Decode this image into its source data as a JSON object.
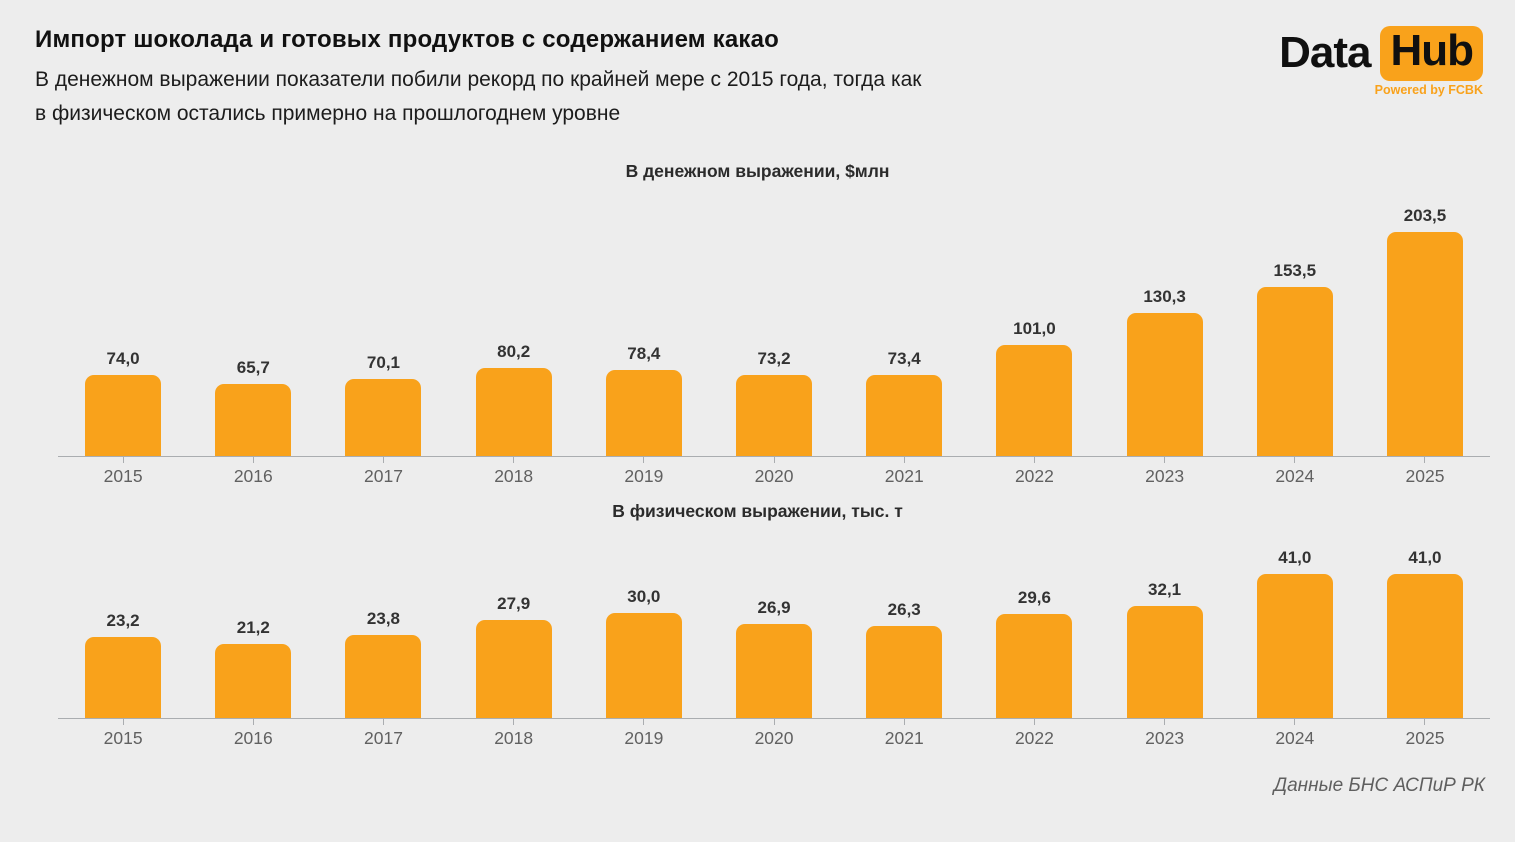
{
  "page": {
    "title": "Импорт шоколада и готовых продуктов с содержанием какао",
    "subtitle_lines": [
      "В денежном выражении показатели побили рекорд по крайней мере с 2015 года, тогда как",
      "в физическом остались примерно на прошлогоднем уровне"
    ],
    "source": "Данные БНС АСПиР РК"
  },
  "logo": {
    "part1": "Data",
    "part2": "Hub",
    "tagline": "Powered by FCBK"
  },
  "colors": {
    "bar": "#F9A21B",
    "logo_badge": "#F9A21B",
    "background": "#EDEDED"
  },
  "chart_data": [
    {
      "type": "bar",
      "title": "В денежном выражении, $млн",
      "categories": [
        "2015",
        "2016",
        "2017",
        "2018",
        "2019",
        "2020",
        "2021",
        "2022",
        "2023",
        "2024",
        "2025"
      ],
      "values": [
        74.0,
        65.7,
        70.1,
        80.2,
        78.4,
        73.2,
        73.4,
        101.0,
        130.3,
        153.5,
        203.5
      ],
      "labels": [
        "74,0",
        "65,7",
        "70,1",
        "80,2",
        "78,4",
        "73,2",
        "73,4",
        "101,0",
        "130,3",
        "153,5",
        "203,5"
      ],
      "xlabel": "",
      "ylabel": "$млн",
      "ylim": [
        0,
        220
      ],
      "grid": false,
      "legend": "none"
    },
    {
      "type": "bar",
      "title": "В физическом выражении, тыс. т",
      "categories": [
        "2015",
        "2016",
        "2017",
        "2018",
        "2019",
        "2020",
        "2021",
        "2022",
        "2023",
        "2024",
        "2025"
      ],
      "values": [
        23.2,
        21.2,
        23.8,
        27.9,
        30.0,
        26.9,
        26.3,
        29.6,
        32.1,
        41.0,
        41.0
      ],
      "labels": [
        "23,2",
        "21,2",
        "23,8",
        "27,9",
        "30,0",
        "26,9",
        "26,3",
        "29,6",
        "32,1",
        "41,0",
        "41,0"
      ],
      "xlabel": "",
      "ylabel": "тыс. т",
      "ylim": [
        0,
        45
      ],
      "grid": false,
      "legend": "none"
    }
  ]
}
